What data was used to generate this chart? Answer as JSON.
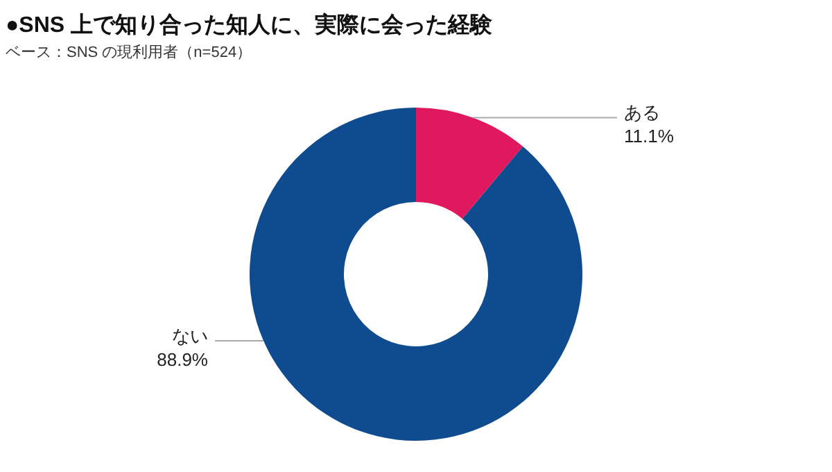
{
  "chart_data": {
    "type": "donut",
    "title": "●SNS 上で知り合った知人に、実際に会った経験",
    "subtitle": "ベース：SNS の現利用者（n=524）",
    "categories": [
      "ある",
      "ない"
    ],
    "values": [
      11.1,
      88.9
    ],
    "colors": [
      "#e0195e",
      "#0f4c8f"
    ],
    "value_labels": [
      "11.1%",
      "88.9%"
    ]
  }
}
